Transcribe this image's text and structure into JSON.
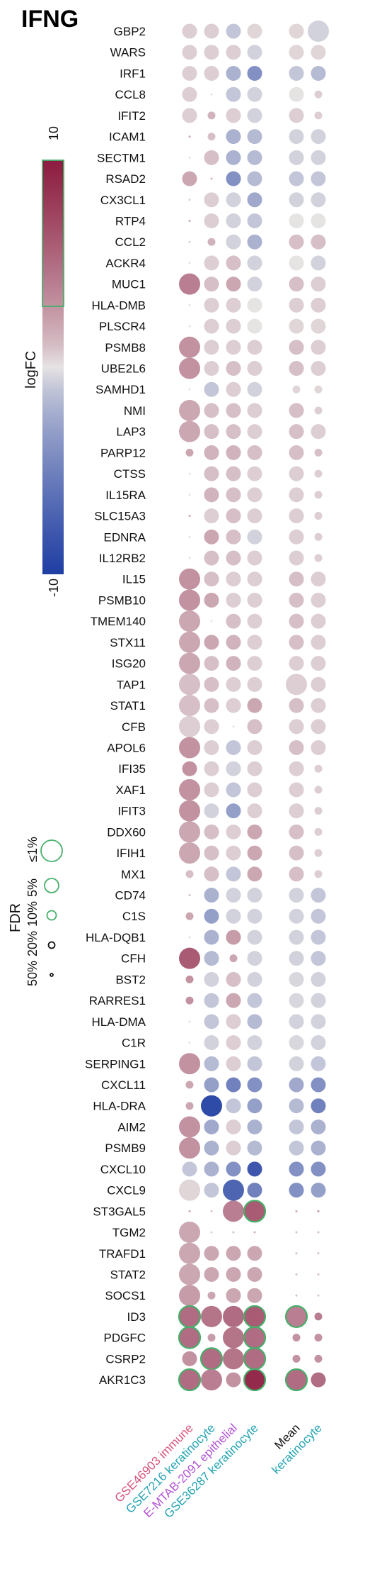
{
  "chart_data": {
    "type": "dot-matrix",
    "title": "IFNG",
    "color_scale": {
      "label": "logFC",
      "max_label": "10",
      "min_label": "-10",
      "range": [
        -10,
        10
      ],
      "high_color": "#8c1b40",
      "mid_color": "#e6e3e3",
      "low_color": "#1f3ea3"
    },
    "size_scale": {
      "label": "FDR",
      "levels": [
        "≤1%",
        "5%",
        "10%",
        "20%",
        "50%"
      ]
    },
    "columns": [
      {
        "name": "GSE46903 immune",
        "color": "#d9537a"
      },
      {
        "name": "GSE7216 keratinocyte",
        "color": "#22a3b2"
      },
      {
        "name": "E-MTAB-2091 epithelial",
        "color": "#b253d4"
      },
      {
        "name": "GSE36287 keratinocyte",
        "color": "#22a3b2"
      }
    ],
    "summary_columns": [
      {
        "name": "Mean",
        "color": "#111111"
      },
      {
        "name": "keratinocyte",
        "color": "#22a3b2"
      }
    ],
    "genes": [
      "GBP2",
      "WARS",
      "IRF1",
      "CCL8",
      "IFIT2",
      "ICAM1",
      "SECTM1",
      "RSAD2",
      "CX3CL1",
      "RTP4",
      "CCL2",
      "ACKR4",
      "MUC1",
      "HLA-DMB",
      "PLSCR4",
      "PSMB8",
      "UBE2L6",
      "SAMHD1",
      "NMI",
      "LAP3",
      "PARP12",
      "CTSS",
      "IL15RA",
      "SLC15A3",
      "EDNRA",
      "IL12RB2",
      "IL15",
      "PSMB10",
      "TMEM140",
      "STX11",
      "ISG20",
      "TAP1",
      "STAT1",
      "CFB",
      "APOL6",
      "IFI35",
      "XAF1",
      "IFIT3",
      "DDX60",
      "IFIH1",
      "MX1",
      "CD74",
      "C1S",
      "HLA-DQB1",
      "CFH",
      "BST2",
      "RARRES1",
      "HLA-DMA",
      "C1R",
      "SERPING1",
      "CXCL11",
      "HLA-DRA",
      "AIM2",
      "PSMB9",
      "CXCL10",
      "CXCL9",
      "ST3GAL5",
      "TGM2",
      "TRAFD1",
      "STAT2",
      "SOCS1",
      "ID3",
      "PDGFC",
      "CSRP2",
      "AKR1C3"
    ],
    "values": [
      [
        0.5,
        0.5,
        -1,
        0.3,
        0.3,
        -0.5
      ],
      [
        0.5,
        0.5,
        0.5,
        -0.5,
        0.3,
        0.3
      ],
      [
        0.5,
        0.5,
        -2,
        -4,
        -1,
        -1.5
      ],
      [
        0.5,
        0,
        -1,
        -0.5,
        0,
        0.5
      ],
      [
        0.5,
        1.5,
        0.5,
        -0.5,
        0.5,
        0.5
      ],
      [
        2,
        1,
        -2,
        -1.5,
        -0.5,
        -0.5
      ],
      [
        0,
        1,
        -2,
        -1.5,
        -0.5,
        -0.5
      ],
      [
        2,
        1.5,
        -4,
        -1.5,
        -1,
        -1
      ],
      [
        0.5,
        0.5,
        -0.5,
        -2.5,
        -0.5,
        -0.5
      ],
      [
        2,
        0.5,
        -0.5,
        -1,
        0,
        0
      ],
      [
        0.5,
        1.5,
        -0.5,
        -2,
        1,
        1
      ],
      [
        0,
        0.5,
        1,
        -0.5,
        0,
        -0.5
      ],
      [
        4,
        1,
        2,
        -0.5,
        1,
        0.5
      ],
      [
        0,
        0.5,
        0.5,
        0,
        0.5,
        0.5
      ],
      [
        0,
        0.5,
        0.5,
        0,
        0.3,
        0.3
      ],
      [
        3,
        0.5,
        0.5,
        0.5,
        1,
        0.5
      ],
      [
        3,
        0.5,
        1,
        0.5,
        1,
        0.5
      ],
      [
        0,
        -1,
        0.5,
        -0.5,
        0.3,
        0.3
      ],
      [
        2,
        1,
        1,
        0.5,
        1,
        0.5
      ],
      [
        2,
        1,
        1,
        0.5,
        1,
        0.5
      ],
      [
        2,
        1.5,
        1.5,
        1,
        1,
        1
      ],
      [
        0,
        1,
        1,
        0.5,
        0.5,
        0.5
      ],
      [
        0,
        1.5,
        1,
        0.5,
        0.5,
        0.5
      ],
      [
        2,
        0.5,
        1,
        0.5,
        0.5,
        0.5
      ],
      [
        0,
        2,
        1,
        -0.5,
        0.5,
        0.5
      ],
      [
        0,
        1,
        1,
        0.5,
        0.5,
        0.5
      ],
      [
        3,
        1,
        0.5,
        0.5,
        1,
        0.5
      ],
      [
        3,
        2,
        0.5,
        0.5,
        1,
        0.5
      ],
      [
        2,
        0,
        1,
        0.5,
        1,
        0.5
      ],
      [
        2,
        2,
        1.5,
        0.5,
        1,
        0.5
      ],
      [
        2,
        1,
        1.5,
        0.5,
        0.5,
        0.5
      ],
      [
        1,
        1,
        0.5,
        0.5,
        0.5,
        0.5
      ],
      [
        1,
        1,
        0.5,
        2,
        1,
        0.5
      ],
      [
        0.5,
        0.5,
        0,
        1,
        0.5,
        0.5
      ],
      [
        3,
        0.5,
        -1,
        0.5,
        1,
        0.5
      ],
      [
        3,
        0.5,
        -0.5,
        0.5,
        0.5,
        0.5
      ],
      [
        3,
        0.5,
        -1,
        0.5,
        0.5,
        0.5
      ],
      [
        3,
        -0.5,
        -3,
        0.5,
        0.5,
        0.5
      ],
      [
        2,
        1,
        0.5,
        2,
        1,
        0.5
      ],
      [
        2,
        1,
        0.5,
        2,
        1,
        0.5
      ],
      [
        1,
        1,
        -1,
        2,
        1,
        0.5
      ],
      [
        1,
        -2,
        -0.5,
        -0.5,
        -0.5,
        -1
      ],
      [
        2,
        -3,
        -0.5,
        -0.5,
        -0.5,
        -1
      ],
      [
        0,
        -2,
        2.5,
        -0.5,
        -0.5,
        -1
      ],
      [
        6,
        -1.5,
        2,
        -0.5,
        -0.5,
        -1
      ],
      [
        3,
        -0.5,
        1,
        -0.5,
        -0.3,
        -0.5
      ],
      [
        3,
        -1,
        2,
        -1,
        -0.3,
        -0.5
      ],
      [
        0,
        -1,
        0.5,
        -1.5,
        -0.5,
        -0.5
      ],
      [
        0,
        -0.5,
        0.5,
        -0.5,
        -0.3,
        -0.5
      ],
      [
        3,
        -1.5,
        0.5,
        -1,
        -0.5,
        -1
      ],
      [
        2,
        -3,
        -5,
        -4,
        -2.5,
        -4
      ],
      [
        2,
        -9,
        -1,
        -3,
        -1.5,
        -5
      ],
      [
        3,
        -2.5,
        0.5,
        -2,
        -1,
        -2
      ],
      [
        3,
        -2,
        0.5,
        -1.5,
        -1,
        -2
      ],
      [
        -1,
        -2,
        -4,
        -8,
        -4,
        -4
      ],
      [
        0.3,
        -1,
        -7,
        -5,
        -4,
        -3
      ],
      [
        2,
        1,
        4,
        6,
        2,
        3
      ],
      [
        2,
        0.5,
        1,
        1.5,
        1,
        1
      ],
      [
        2,
        2,
        2,
        2,
        1,
        1
      ],
      [
        2,
        2,
        2,
        2,
        1,
        1
      ],
      [
        2.5,
        2,
        2,
        2,
        1,
        1
      ],
      [
        5,
        4.5,
        5,
        6,
        4,
        4
      ],
      [
        5,
        2.5,
        4.5,
        5,
        3,
        3
      ],
      [
        3,
        5,
        4.5,
        5,
        3,
        3
      ],
      [
        5,
        4,
        3,
        9,
        5,
        5
      ]
    ],
    "fdr_level": [
      [
        2,
        2,
        2,
        2,
        2,
        1
      ],
      [
        2,
        2,
        2,
        2,
        2,
        2
      ],
      [
        2,
        2,
        2,
        2,
        2,
        2
      ],
      [
        2,
        4,
        2,
        2,
        2,
        3
      ],
      [
        2,
        3,
        2,
        2,
        2,
        3
      ],
      [
        4,
        3,
        2,
        2,
        2,
        2
      ],
      [
        4,
        2,
        2,
        2,
        2,
        2
      ],
      [
        2,
        4,
        2,
        2,
        2,
        2
      ],
      [
        4,
        2,
        2,
        2,
        2,
        2
      ],
      [
        4,
        2,
        2,
        2,
        2,
        2
      ],
      [
        4,
        3,
        2,
        2,
        2,
        2
      ],
      [
        4,
        2,
        2,
        2,
        2,
        2
      ],
      [
        1,
        2,
        2,
        2,
        2,
        2
      ],
      [
        4,
        2,
        2,
        2,
        2,
        2
      ],
      [
        4,
        2,
        2,
        2,
        2,
        2
      ],
      [
        1,
        2,
        2,
        2,
        2,
        2
      ],
      [
        1,
        2,
        2,
        2,
        2,
        2
      ],
      [
        4,
        2,
        2,
        2,
        3,
        3
      ],
      [
        1,
        2,
        2,
        2,
        2,
        3
      ],
      [
        1,
        2,
        2,
        2,
        2,
        2
      ],
      [
        3,
        2,
        2,
        2,
        2,
        3
      ],
      [
        4,
        2,
        2,
        2,
        2,
        3
      ],
      [
        4,
        2,
        2,
        2,
        2,
        3
      ],
      [
        4,
        2,
        2,
        2,
        2,
        3
      ],
      [
        4,
        2,
        2,
        2,
        2,
        3
      ],
      [
        4,
        2,
        2,
        2,
        2,
        3
      ],
      [
        1,
        2,
        2,
        2,
        2,
        2
      ],
      [
        1,
        2,
        2,
        2,
        2,
        2
      ],
      [
        1,
        4,
        2,
        2,
        2,
        2
      ],
      [
        1,
        2,
        2,
        2,
        2,
        2
      ],
      [
        1,
        2,
        2,
        2,
        2,
        2
      ],
      [
        1,
        2,
        2,
        2,
        1,
        2
      ],
      [
        1,
        2,
        2,
        2,
        2,
        2
      ],
      [
        1,
        2,
        4,
        2,
        2,
        2
      ],
      [
        1,
        2,
        2,
        2,
        2,
        2
      ],
      [
        2,
        2,
        2,
        2,
        2,
        3
      ],
      [
        1,
        2,
        2,
        2,
        2,
        3
      ],
      [
        1,
        2,
        2,
        2,
        2,
        3
      ],
      [
        1,
        2,
        2,
        2,
        2,
        3
      ],
      [
        1,
        2,
        2,
        2,
        2,
        3
      ],
      [
        3,
        2,
        2,
        2,
        2,
        3
      ],
      [
        4,
        2,
        2,
        2,
        2,
        2
      ],
      [
        3,
        2,
        2,
        2,
        2,
        2
      ],
      [
        4,
        2,
        2,
        2,
        2,
        2
      ],
      [
        1,
        2,
        3,
        2,
        2,
        2
      ],
      [
        3,
        2,
        2,
        2,
        2,
        2
      ],
      [
        3,
        2,
        2,
        2,
        2,
        2
      ],
      [
        4,
        2,
        2,
        2,
        2,
        2
      ],
      [
        4,
        2,
        2,
        2,
        2,
        2
      ],
      [
        1,
        2,
        2,
        2,
        2,
        2
      ],
      [
        3,
        2,
        2,
        2,
        2,
        2
      ],
      [
        3,
        1,
        2,
        2,
        2,
        2
      ],
      [
        1,
        2,
        2,
        2,
        2,
        2
      ],
      [
        1,
        2,
        2,
        2,
        2,
        2
      ],
      [
        2,
        2,
        2,
        2,
        2,
        2
      ],
      [
        1,
        2,
        1,
        2,
        2,
        2
      ],
      [
        4,
        4,
        1,
        0,
        4,
        4
      ],
      [
        1,
        4,
        4,
        4,
        4,
        4
      ],
      [
        1,
        2,
        2,
        2,
        4,
        4
      ],
      [
        1,
        2,
        2,
        2,
        4,
        4
      ],
      [
        1,
        3,
        2,
        2,
        4,
        4
      ],
      [
        0,
        1,
        1,
        0,
        0,
        3
      ],
      [
        0,
        3,
        1,
        0,
        3,
        3
      ],
      [
        2,
        0,
        1,
        0,
        3,
        3
      ],
      [
        0,
        1,
        2,
        0,
        0,
        2
      ]
    ]
  }
}
